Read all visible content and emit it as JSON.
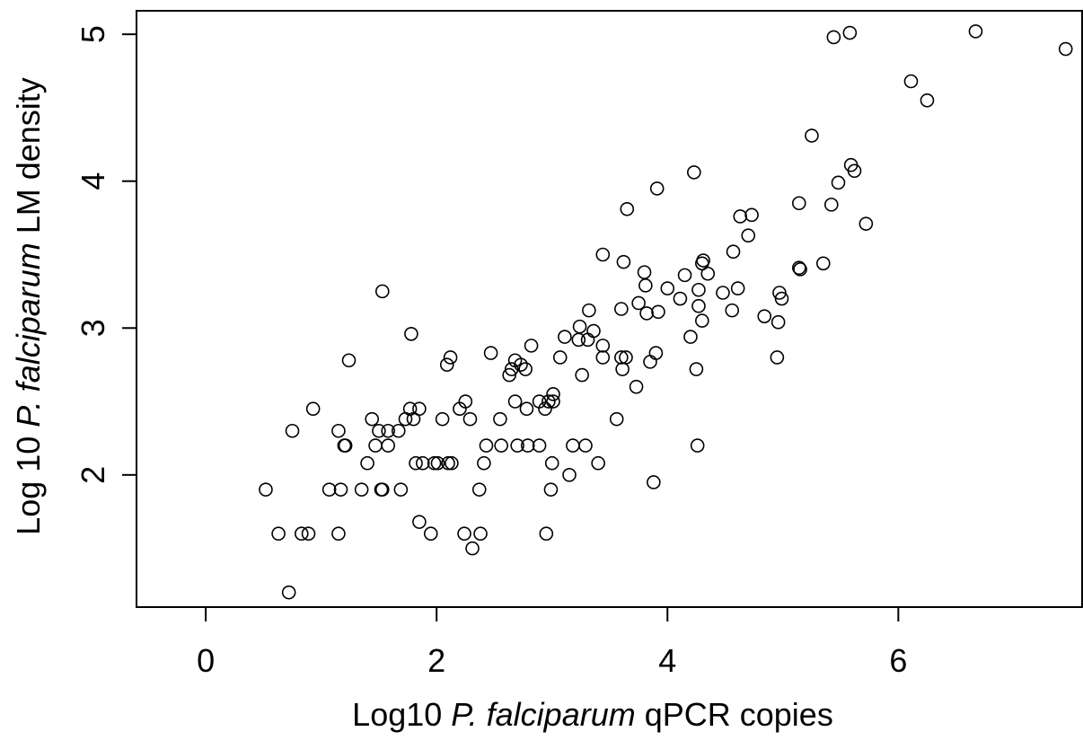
{
  "chart_data": {
    "type": "scatter",
    "xlabel": {
      "prefix": "Log10 ",
      "italic": "P. falciparum",
      "suffix": " qPCR copies"
    },
    "ylabel": {
      "prefix": "Log 10 ",
      "italic": "P. falciparum",
      "suffix": " LM density"
    },
    "xlim": [
      -0.6,
      7.6
    ],
    "ylim": [
      1.1,
      5.16
    ],
    "xticks": [
      0,
      2,
      4,
      6
    ],
    "xtick_labels": [
      "0",
      "2",
      "4",
      "6"
    ],
    "yticks": [
      2,
      3,
      4,
      5
    ],
    "ytick_labels": [
      "2",
      "3",
      "4",
      "5"
    ],
    "grid": false,
    "marker": "open-circle",
    "colors": {
      "marker": "#000000",
      "axes": "#000000"
    },
    "points": [
      [
        0.52,
        1.9
      ],
      [
        0.63,
        1.6
      ],
      [
        0.72,
        1.2
      ],
      [
        0.75,
        2.3
      ],
      [
        0.83,
        1.6
      ],
      [
        0.89,
        1.6
      ],
      [
        0.93,
        2.45
      ],
      [
        1.07,
        1.9
      ],
      [
        1.15,
        1.6
      ],
      [
        1.15,
        2.3
      ],
      [
        1.17,
        1.9
      ],
      [
        1.2,
        2.2
      ],
      [
        1.21,
        2.2
      ],
      [
        1.24,
        2.78
      ],
      [
        1.35,
        1.9
      ],
      [
        1.4,
        2.08
      ],
      [
        1.44,
        2.38
      ],
      [
        1.47,
        2.2
      ],
      [
        1.5,
        2.3
      ],
      [
        1.52,
        1.9
      ],
      [
        1.53,
        1.9
      ],
      [
        1.53,
        3.25
      ],
      [
        1.58,
        2.2
      ],
      [
        1.58,
        2.3
      ],
      [
        1.67,
        2.3
      ],
      [
        1.69,
        1.9
      ],
      [
        1.73,
        2.38
      ],
      [
        1.77,
        2.45
      ],
      [
        1.78,
        2.96
      ],
      [
        1.8,
        2.38
      ],
      [
        1.82,
        2.08
      ],
      [
        1.85,
        2.45
      ],
      [
        1.85,
        1.68
      ],
      [
        1.88,
        2.08
      ],
      [
        1.95,
        1.6
      ],
      [
        1.98,
        2.08
      ],
      [
        2.01,
        2.08
      ],
      [
        2.05,
        2.38
      ],
      [
        2.09,
        2.75
      ],
      [
        2.1,
        2.08
      ],
      [
        2.12,
        2.8
      ],
      [
        2.13,
        2.08
      ],
      [
        2.2,
        2.45
      ],
      [
        2.24,
        1.6
      ],
      [
        2.25,
        2.5
      ],
      [
        2.29,
        2.38
      ],
      [
        2.31,
        1.5
      ],
      [
        2.37,
        1.9
      ],
      [
        2.38,
        1.6
      ],
      [
        2.41,
        2.08
      ],
      [
        2.43,
        2.2
      ],
      [
        2.47,
        2.83
      ],
      [
        2.55,
        2.38
      ],
      [
        2.56,
        2.2
      ],
      [
        2.63,
        2.68
      ],
      [
        2.65,
        2.72
      ],
      [
        2.68,
        2.5
      ],
      [
        2.68,
        2.78
      ],
      [
        2.7,
        2.2
      ],
      [
        2.73,
        2.75
      ],
      [
        2.77,
        2.72
      ],
      [
        2.78,
        2.45
      ],
      [
        2.79,
        2.2
      ],
      [
        2.82,
        2.88
      ],
      [
        2.89,
        2.5
      ],
      [
        2.89,
        2.2
      ],
      [
        2.94,
        2.45
      ],
      [
        2.95,
        1.6
      ],
      [
        2.97,
        2.5
      ],
      [
        2.99,
        1.9
      ],
      [
        3.0,
        2.08
      ],
      [
        3.01,
        2.55
      ],
      [
        3.01,
        2.5
      ],
      [
        3.07,
        2.8
      ],
      [
        3.11,
        2.94
      ],
      [
        3.15,
        2.0
      ],
      [
        3.18,
        2.2
      ],
      [
        3.23,
        2.92
      ],
      [
        3.24,
        3.01
      ],
      [
        3.26,
        2.68
      ],
      [
        3.29,
        2.2
      ],
      [
        3.31,
        2.92
      ],
      [
        3.32,
        3.12
      ],
      [
        3.36,
        2.98
      ],
      [
        3.4,
        2.08
      ],
      [
        3.44,
        2.88
      ],
      [
        3.44,
        2.8
      ],
      [
        3.44,
        3.5
      ],
      [
        3.56,
        2.38
      ],
      [
        3.6,
        3.13
      ],
      [
        3.6,
        2.8
      ],
      [
        3.61,
        2.72
      ],
      [
        3.62,
        3.45
      ],
      [
        3.64,
        2.8
      ],
      [
        3.65,
        3.81
      ],
      [
        3.73,
        2.6
      ],
      [
        3.75,
        3.17
      ],
      [
        3.8,
        3.38
      ],
      [
        3.81,
        3.29
      ],
      [
        3.82,
        3.1
      ],
      [
        3.85,
        2.77
      ],
      [
        3.88,
        1.95
      ],
      [
        3.9,
        2.83
      ],
      [
        3.91,
        3.95
      ],
      [
        3.92,
        3.11
      ],
      [
        4.0,
        3.27
      ],
      [
        4.11,
        3.2
      ],
      [
        4.15,
        3.36
      ],
      [
        4.2,
        2.94
      ],
      [
        4.23,
        4.06
      ],
      [
        4.25,
        2.72
      ],
      [
        4.26,
        2.2
      ],
      [
        4.27,
        3.15
      ],
      [
        4.27,
        3.26
      ],
      [
        4.3,
        3.05
      ],
      [
        4.3,
        3.44
      ],
      [
        4.31,
        3.46
      ],
      [
        4.35,
        3.37
      ],
      [
        4.48,
        3.24
      ],
      [
        4.56,
        3.12
      ],
      [
        4.57,
        3.52
      ],
      [
        4.61,
        3.27
      ],
      [
        4.63,
        3.76
      ],
      [
        4.7,
        3.63
      ],
      [
        4.73,
        3.77
      ],
      [
        4.84,
        3.08
      ],
      [
        4.95,
        2.8
      ],
      [
        4.96,
        3.04
      ],
      [
        4.97,
        3.24
      ],
      [
        4.99,
        3.2
      ],
      [
        5.14,
        3.85
      ],
      [
        5.14,
        3.41
      ],
      [
        5.15,
        3.4
      ],
      [
        5.25,
        4.31
      ],
      [
        5.35,
        3.44
      ],
      [
        5.42,
        3.84
      ],
      [
        5.44,
        4.98
      ],
      [
        5.48,
        3.99
      ],
      [
        5.58,
        5.01
      ],
      [
        5.59,
        4.11
      ],
      [
        5.62,
        4.07
      ],
      [
        5.72,
        3.71
      ],
      [
        6.11,
        4.68
      ],
      [
        6.25,
        4.55
      ],
      [
        6.67,
        5.02
      ],
      [
        7.45,
        4.9
      ]
    ]
  }
}
